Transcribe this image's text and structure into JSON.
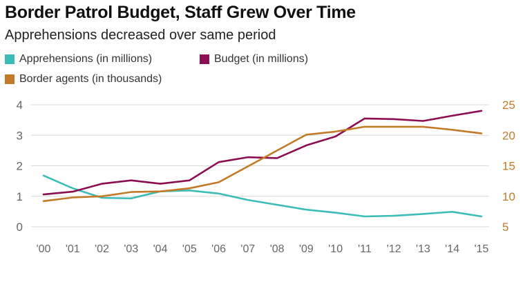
{
  "chart_data": {
    "type": "line",
    "title": "Border Patrol Budget, Staff Grew Over Time",
    "subtitle": "Apprehensions decreased over same period",
    "categories": [
      "'00",
      "'01",
      "'02",
      "'03",
      "'04",
      "'05",
      "'06",
      "'07",
      "'08",
      "'09",
      "'10",
      "'11",
      "'12",
      "'13",
      "'14",
      "'15"
    ],
    "left_axis": {
      "ticks": [
        "0",
        "1",
        "2",
        "3",
        "4"
      ],
      "ylim": [
        0,
        4
      ]
    },
    "right_axis": {
      "ticks": [
        "5",
        "10",
        "15",
        "20",
        "25"
      ],
      "ylim": [
        5,
        25
      ]
    },
    "grid": true,
    "legend_position": "top-left",
    "series": [
      {
        "name": "Apprehensions (in millions)",
        "axis": "left",
        "color": "#3cbcb6",
        "values": [
          1.68,
          1.26,
          0.95,
          0.93,
          1.16,
          1.19,
          1.09,
          0.88,
          0.72,
          0.56,
          0.46,
          0.34,
          0.36,
          0.42,
          0.49,
          0.34
        ]
      },
      {
        "name": "Budget (in millions)",
        "axis": "left",
        "color": "#8c0d52",
        "values": [
          1.06,
          1.15,
          1.41,
          1.52,
          1.41,
          1.52,
          2.12,
          2.28,
          2.25,
          2.67,
          2.96,
          3.55,
          3.53,
          3.47,
          3.64,
          3.8
        ]
      },
      {
        "name": "Border agents (in thousands)",
        "axis": "right",
        "color": "#c27a27",
        "values": [
          9.2,
          9.8,
          10.0,
          10.7,
          10.8,
          11.3,
          12.3,
          14.9,
          17.5,
          20.1,
          20.6,
          21.4,
          21.4,
          21.4,
          20.9,
          20.3
        ]
      }
    ]
  },
  "colors": {
    "grid": "#d9d9d9",
    "axis_text_left": "#666666",
    "axis_text_right": "#c27a27"
  }
}
